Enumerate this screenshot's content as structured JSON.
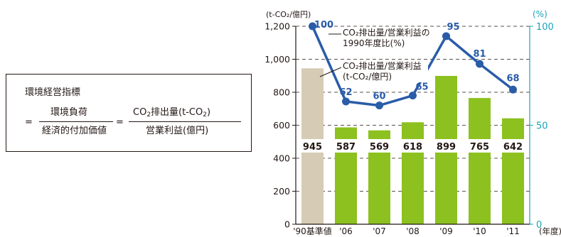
{
  "formula": {
    "title": "環境経営指標",
    "eq1": "=",
    "num1": "環境負荷",
    "den1": "経済的付加価値",
    "eq2": "=",
    "num2_a": "CO",
    "num2_sub": "2",
    "num2_b": "排出量(t-CO",
    "num2_sub2": "2",
    "num2_c": ")",
    "den2": "営業利益(億円)"
  },
  "colors": {
    "bar_base": "#d6cbb4",
    "bar": "#8cc11f",
    "line": "#2a5ca8",
    "right_axis": "#1aa3b8",
    "text": "#231815"
  },
  "chart_data": {
    "type": "bar+line",
    "categories": [
      "'90基準値",
      "'06",
      "'07",
      "'08",
      "'09",
      "'10",
      "'11"
    ],
    "x_unit": "(年度)",
    "left_axis": {
      "unit": "(t-CO₂/億円)",
      "range": [
        0,
        1200
      ],
      "ticks": [
        "0",
        "200",
        "400",
        "600",
        "800",
        "1,000",
        "1,200"
      ]
    },
    "right_axis": {
      "unit": "(%)",
      "range": [
        0,
        100
      ],
      "ticks": [
        "0",
        "50",
        "100"
      ]
    },
    "bars": {
      "name": "CO₂排出量/営業利益 (t-CO₂/億円)",
      "values": [
        945,
        587,
        569,
        618,
        899,
        765,
        642
      ],
      "labels": [
        "945",
        "587",
        "569",
        "618",
        "899",
        "765",
        "642"
      ]
    },
    "line": {
      "name": "CO₂排出量/営業利益の 1990年度比(%)",
      "values": [
        100,
        62,
        60,
        65,
        95,
        81,
        68
      ],
      "labels": [
        "100",
        "62",
        "60",
        "65",
        "95",
        "81",
        "68"
      ]
    },
    "grid": "dashed horizontal",
    "legend": [
      {
        "line1": "CO₂排出量/営業利益の",
        "line2": "1990年度比(%)"
      },
      {
        "line1": "CO₂排出量/営業利益",
        "line2": "(t-CO₂/億円)"
      }
    ]
  }
}
